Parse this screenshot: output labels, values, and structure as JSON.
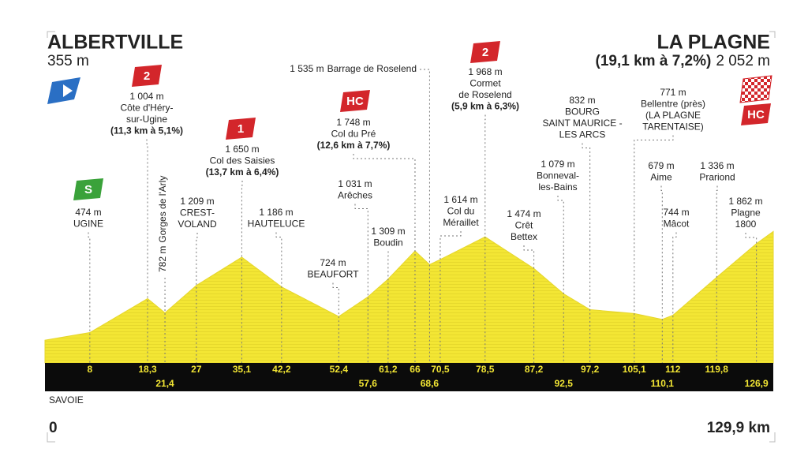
{
  "chart_data": {
    "type": "area",
    "region": "SAVOIE",
    "xlim": [
      0,
      129.9
    ],
    "xticks": [
      {
        "value": 0,
        "label": "0"
      },
      {
        "value": 129.9,
        "label": "129,9 km"
      }
    ],
    "ylim": [
      0,
      2500
    ],
    "color": "#f2e531",
    "x": [
      0,
      8,
      18.3,
      21.4,
      27,
      35.1,
      42.2,
      52.4,
      57.6,
      61.2,
      66,
      68.6,
      70.5,
      78.5,
      87.2,
      92.5,
      97.2,
      105.1,
      110.1,
      112,
      119.8,
      126.9,
      129.9
    ],
    "x_labels": [
      null,
      "8",
      "18,3",
      "21,4",
      "27",
      "35,1",
      "42,2",
      "52,4",
      "57,6",
      "61,2",
      "66",
      "68,6",
      "70,5",
      "78,5",
      "87,2",
      "92,5",
      "97,2",
      "105,1",
      "110,1",
      "112",
      "119,8",
      "126,9",
      null
    ],
    "values": [
      355,
      474,
      1004,
      782,
      1209,
      1650,
      1186,
      724,
      1031,
      1309,
      1748,
      1535,
      1614,
      1968,
      1474,
      1079,
      832,
      771,
      679,
      744,
      1336,
      1862,
      2052
    ],
    "value_labels": [
      "355 m",
      "474 m",
      "1 004 m",
      "782 m",
      "1 209 m",
      "1 650 m",
      "1 186 m",
      "724 m",
      "1 031 m",
      "1 309 m",
      "1 748 m",
      "1 535 m",
      "1 614 m",
      "1 968 m",
      "1 474 m",
      "1 079 m",
      "832 m",
      "771 m",
      "679 m",
      "744 m",
      "1 336 m",
      "1 862 m",
      "2 052 m"
    ],
    "names": [
      [
        "ALBERTVILLE"
      ],
      [
        "UGINE"
      ],
      [
        "Côte d'Héry-",
        "sur-Ugine"
      ],
      [
        "Gorges de l'Arly"
      ],
      [
        "CREST-",
        "VOLAND"
      ],
      [
        "Col des Saisies"
      ],
      [
        "HAUTELUCE"
      ],
      [
        "BEAUFORT"
      ],
      [
        "Arêches"
      ],
      [
        "Boudin"
      ],
      [
        "Col du Pré"
      ],
      [
        "Barrage de Roselend"
      ],
      [
        "Col du",
        "Méraillet"
      ],
      [
        "Cormet",
        "de Roselend"
      ],
      [
        "Crêt",
        "Bettex"
      ],
      [
        "Bonneval-",
        "les-Bains"
      ],
      [
        "BOURG",
        "SAINT MAURICE -",
        "LES ARCS"
      ],
      [
        "Bellentre (près)",
        "(LA PLAGNE",
        "TARENTAISE)"
      ],
      [
        "Aime"
      ],
      [
        "Mâcot"
      ],
      [
        "Prariond"
      ],
      [
        "Plagne",
        "1800"
      ],
      [
        "LA PLAGNE"
      ]
    ],
    "climbs": [
      null,
      null,
      "(11,3 km à 5,1%)",
      null,
      null,
      "(13,7 km à 6,4%)",
      null,
      null,
      null,
      null,
      "(12,6 km à 7,7%)",
      null,
      null,
      "(5,9 km à 6,3%)",
      null,
      null,
      null,
      null,
      null,
      null,
      null,
      null,
      "(19,1 km à 7,2%)"
    ],
    "badges": [
      null,
      "S",
      "2",
      null,
      null,
      "1",
      null,
      null,
      null,
      null,
      "HC",
      null,
      null,
      "2",
      null,
      null,
      null,
      null,
      null,
      null,
      null,
      null,
      "HC"
    ]
  }
}
